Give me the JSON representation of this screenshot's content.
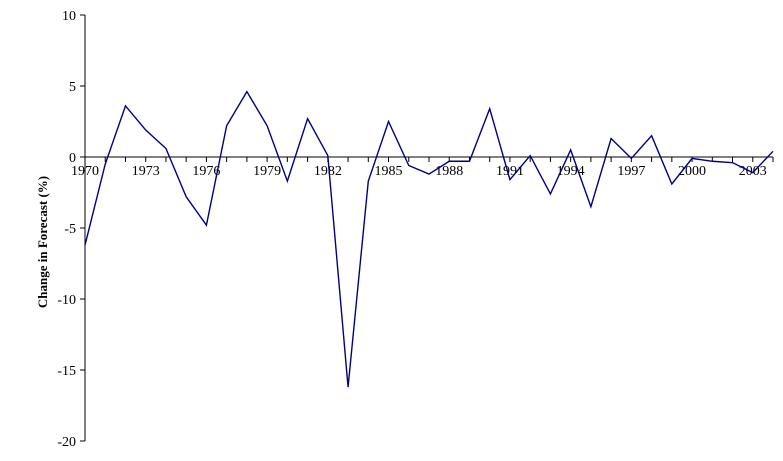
{
  "chart_data": {
    "type": "line",
    "title": "",
    "xlabel": "",
    "ylabel": "Change in Forecast (%)",
    "xlim": [
      1970,
      2004
    ],
    "ylim": [
      -20,
      10
    ],
    "x_ticks": [
      1970,
      1973,
      1976,
      1979,
      1982,
      1985,
      1988,
      1991,
      1994,
      1997,
      2000,
      2003
    ],
    "y_ticks": [
      10,
      5,
      0,
      -5,
      -10,
      -15,
      -20
    ],
    "grid": false,
    "line_color": "#000080",
    "series": [
      {
        "x": [
          1970,
          1971,
          1972,
          1973,
          1974,
          1975,
          1976,
          1977,
          1978,
          1979,
          1980,
          1981,
          1982,
          1983,
          1984,
          1985,
          1986,
          1987,
          1988,
          1989,
          1990,
          1991,
          1992,
          1993,
          1994,
          1995,
          1996,
          1997,
          1998,
          1999,
          2000,
          2001,
          2002,
          2003,
          2004
        ],
        "values": [
          -6.2,
          -0.5,
          3.6,
          1.9,
          0.6,
          -2.8,
          -4.8,
          2.2,
          4.6,
          2.2,
          -1.7,
          2.7,
          0.1,
          -16.2,
          -1.7,
          2.5,
          -0.6,
          -1.2,
          -0.3,
          -0.3,
          3.4,
          -1.6,
          0.1,
          -2.6,
          0.5,
          -3.5,
          1.3,
          -0.1,
          1.5,
          -1.9,
          -0.1,
          -0.3,
          -0.4,
          -1.1,
          0.4
        ]
      }
    ]
  }
}
